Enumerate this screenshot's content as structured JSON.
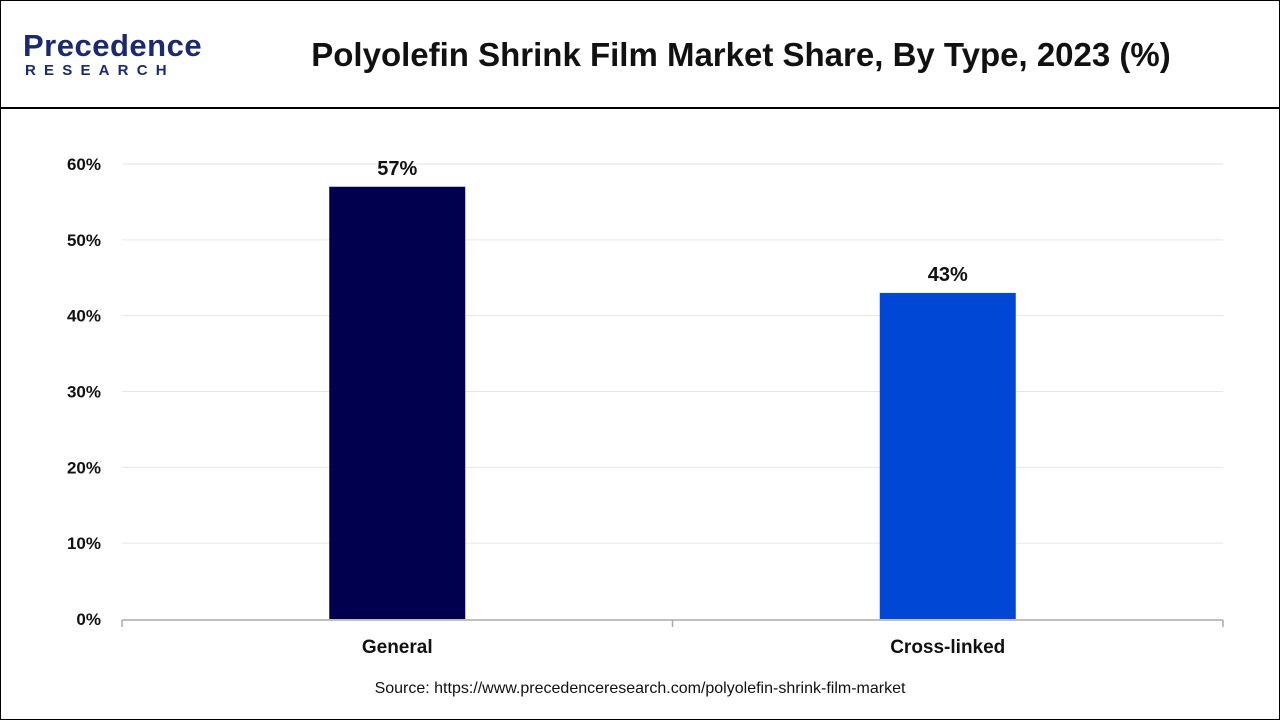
{
  "brand": {
    "name_top": "Precedence",
    "name_bottom": "RESEARCH",
    "color": "#1a2a6e"
  },
  "source": "Source: https://www.precedenceresearch.com/polyolefin-shrink-film-market",
  "chart_data": {
    "type": "bar",
    "title": "Polyolefin Shrink Film Market Share, By Type, 2023 (%)",
    "xlabel": "",
    "ylabel": "",
    "categories": [
      "General",
      "Cross-linked"
    ],
    "values": [
      57,
      43
    ],
    "value_labels": [
      "57%",
      "43%"
    ],
    "bar_colors": [
      "#00004f",
      "#0047d6"
    ],
    "ylim": [
      0,
      60
    ],
    "yticks": [
      0,
      10,
      20,
      30,
      40,
      50,
      60
    ],
    "ytick_labels": [
      "0%",
      "10%",
      "20%",
      "30%",
      "40%",
      "50%",
      "60%"
    ],
    "grid": true,
    "legend": "none"
  }
}
